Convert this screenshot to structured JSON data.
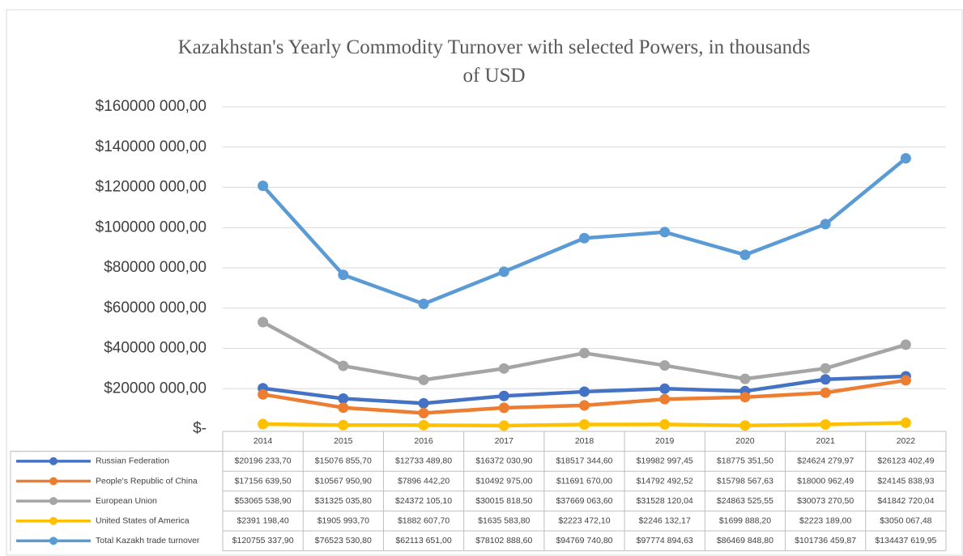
{
  "chart_data": {
    "type": "line",
    "title": "Kazakhstan's Yearly Commodity Turnover with selected Powers, in thousands of USD",
    "categories": [
      "2014",
      "2015",
      "2016",
      "2017",
      "2018",
      "2019",
      "2020",
      "2021",
      "2022"
    ],
    "series": [
      {
        "name": "Russian Federation",
        "color": "#4472c4",
        "values": [
          20196233.7,
          15076855.7,
          12733489.8,
          16372030.9,
          18517344.6,
          19982997.45,
          18775351.5,
          24624279.97,
          26123402.49
        ],
        "value_labels": [
          "$20196 233,70",
          "$15076 855,70",
          "$12733 489,80",
          "$16372 030,90",
          "$18517 344,60",
          "$19982 997,45",
          "$18775 351,50",
          "$24624 279,97",
          "$26123 402,49"
        ]
      },
      {
        "name": "People's Republic of China",
        "color": "#ed7d31",
        "values": [
          17156639.5,
          10567950.9,
          7896442.2,
          10492975.0,
          11691670.0,
          14792492.52,
          15798567.63,
          18000962.49,
          24145838.93
        ],
        "value_labels": [
          "$17156 639,50",
          "$10567 950,90",
          "$7896 442,20",
          "$10492 975,00",
          "$11691 670,00",
          "$14792 492,52",
          "$15798 567,63",
          "$18000 962,49",
          "$24145 838,93"
        ]
      },
      {
        "name": "European Union",
        "color": "#a5a5a5",
        "values": [
          53065538.9,
          31325035.8,
          24372105.1,
          30015818.5,
          37669063.6,
          31528120.04,
          24863525.55,
          30073270.5,
          41842720.04
        ],
        "value_labels": [
          "$53065 538,90",
          "$31325 035,80",
          "$24372 105,10",
          "$30015 818,50",
          "$37669 063,60",
          "$31528 120,04",
          "$24863 525,55",
          "$30073 270,50",
          "$41842 720,04"
        ]
      },
      {
        "name": "United States of America",
        "color": "#ffc000",
        "values": [
          2391198.4,
          1905993.7,
          1882607.7,
          1635583.8,
          2223472.1,
          2246132.17,
          1699888.2,
          2223189.0,
          3050067.48
        ],
        "value_labels": [
          "$2391 198,40",
          "$1905 993,70",
          "$1882 607,70",
          "$1635 583,80",
          "$2223 472,10",
          "$2246 132,17",
          "$1699 888,20",
          "$2223 189,00",
          "$3050 067,48"
        ]
      },
      {
        "name": "Total Kazakh trade turnover",
        "color": "#5b9bd5",
        "values": [
          120755337.9,
          76523530.8,
          62113651.0,
          78102888.6,
          94769740.8,
          97774894.63,
          86469848.8,
          101736459.87,
          134437619.95
        ],
        "value_labels": [
          "$120755 337,90",
          "$76523 530,80",
          "$62113 651,00",
          "$78102 888,60",
          "$94769 740,80",
          "$97774 894,63",
          "$86469 848,80",
          "$101736 459,87",
          "$134437 619,95"
        ]
      }
    ],
    "ylim": [
      0,
      160000000
    ],
    "yticks": [
      {
        "value": 0,
        "label": "$-"
      },
      {
        "value": 20000000,
        "label": "$20000 000,00"
      },
      {
        "value": 40000000,
        "label": "$40000 000,00"
      },
      {
        "value": 60000000,
        "label": "$60000 000,00"
      },
      {
        "value": 80000000,
        "label": "$80000 000,00"
      },
      {
        "value": 100000000,
        "label": "$100000 000,00"
      },
      {
        "value": 120000000,
        "label": "$120000 000,00"
      },
      {
        "value": 140000000,
        "label": "$140000 000,00"
      },
      {
        "value": 160000000,
        "label": "$160000 000,00"
      }
    ],
    "grid": true
  }
}
